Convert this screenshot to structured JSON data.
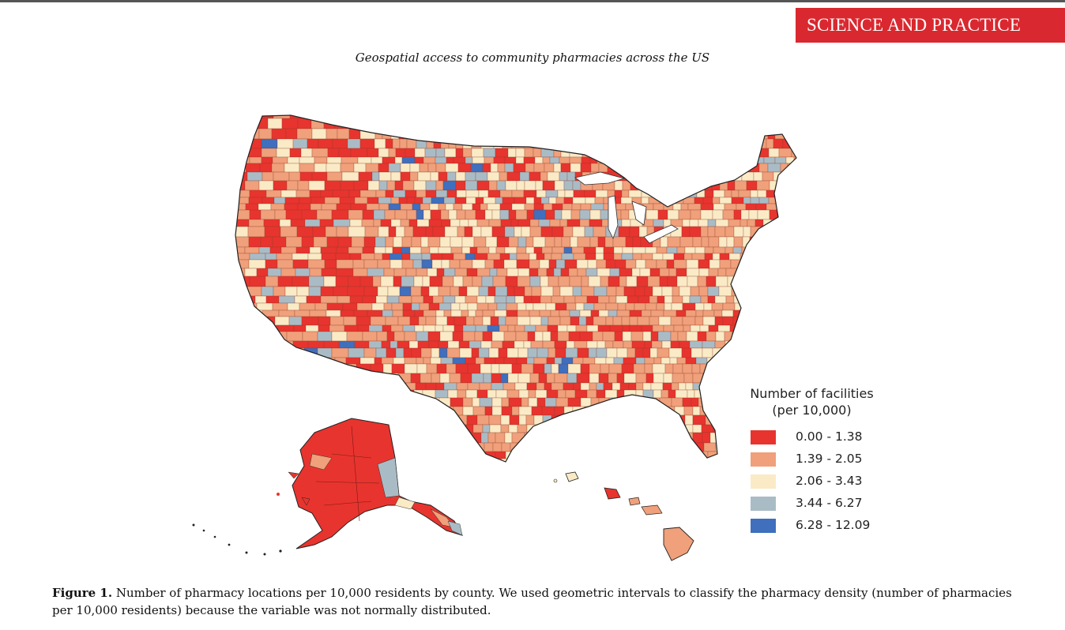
{
  "header": {
    "section_badge": "SCIENCE AND PRACTICE",
    "running_title": "Geospatial access to community pharmacies across the US"
  },
  "map": {
    "regions": [
      "contiguous-us",
      "alaska",
      "hawaii"
    ],
    "legend": {
      "title_line1": "Number of facilities",
      "title_line2": "(per 10,000)",
      "items": [
        {
          "label": "0.00 - 1.38",
          "color": "#e8342e"
        },
        {
          "label": "1.39 - 2.05",
          "color": "#f0a07a"
        },
        {
          "label": "2.06 - 3.43",
          "color": "#faebc6"
        },
        {
          "label": "3.44 - 6.27",
          "color": "#a9bcc6"
        },
        {
          "label": "6.28 - 12.09",
          "color": "#3f6fbd"
        }
      ]
    }
  },
  "caption": {
    "label": "Figure 1.",
    "text": "Number of pharmacy locations per 10,000 residents by county. We used geometric intervals to classify the pharmacy density (number of pharmacies per 10,000 residents) because the variable was not normally distributed."
  }
}
